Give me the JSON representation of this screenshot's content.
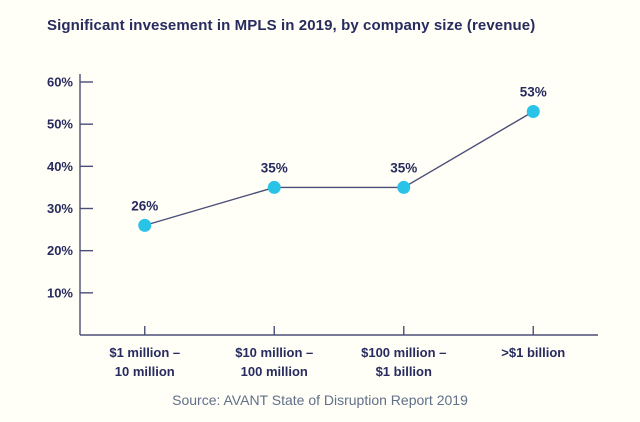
{
  "header": {
    "title": "Significant invesement in MPLS in 2019, by company size (revenue)"
  },
  "footer": {
    "source": "Source: AVANT State of Disruption Report 2019"
  },
  "colors": {
    "background": "#fffef7",
    "title_text": "#272b5e",
    "axis_line": "#4b4e78",
    "series_line": "#4b4e78",
    "point_fill": "#29c3e8",
    "value_label_text": "#272b5e",
    "tick_label_text": "#272b5e",
    "source_text": "#61708a"
  },
  "chart_data": {
    "type": "line",
    "title": "Significant invesement in MPLS in 2019, by company size (revenue)",
    "categories": [
      [
        "$1 million –",
        "10 million"
      ],
      [
        "$10 million –",
        "100 million"
      ],
      [
        "$100 million –",
        "$1 billion"
      ],
      [
        ">$1 billion"
      ]
    ],
    "values": [
      26,
      35,
      35,
      53
    ],
    "point_labels": [
      "26%",
      "35%",
      "35%",
      "53%"
    ],
    "ytick_values": [
      10,
      20,
      30,
      40,
      50,
      60
    ],
    "ytick_labels": [
      "10%",
      "20%",
      "30%",
      "40%",
      "50%",
      "60%"
    ],
    "ylim": [
      0,
      60
    ],
    "xlabel": "",
    "ylabel": "",
    "grid": "off",
    "legend": "none"
  }
}
